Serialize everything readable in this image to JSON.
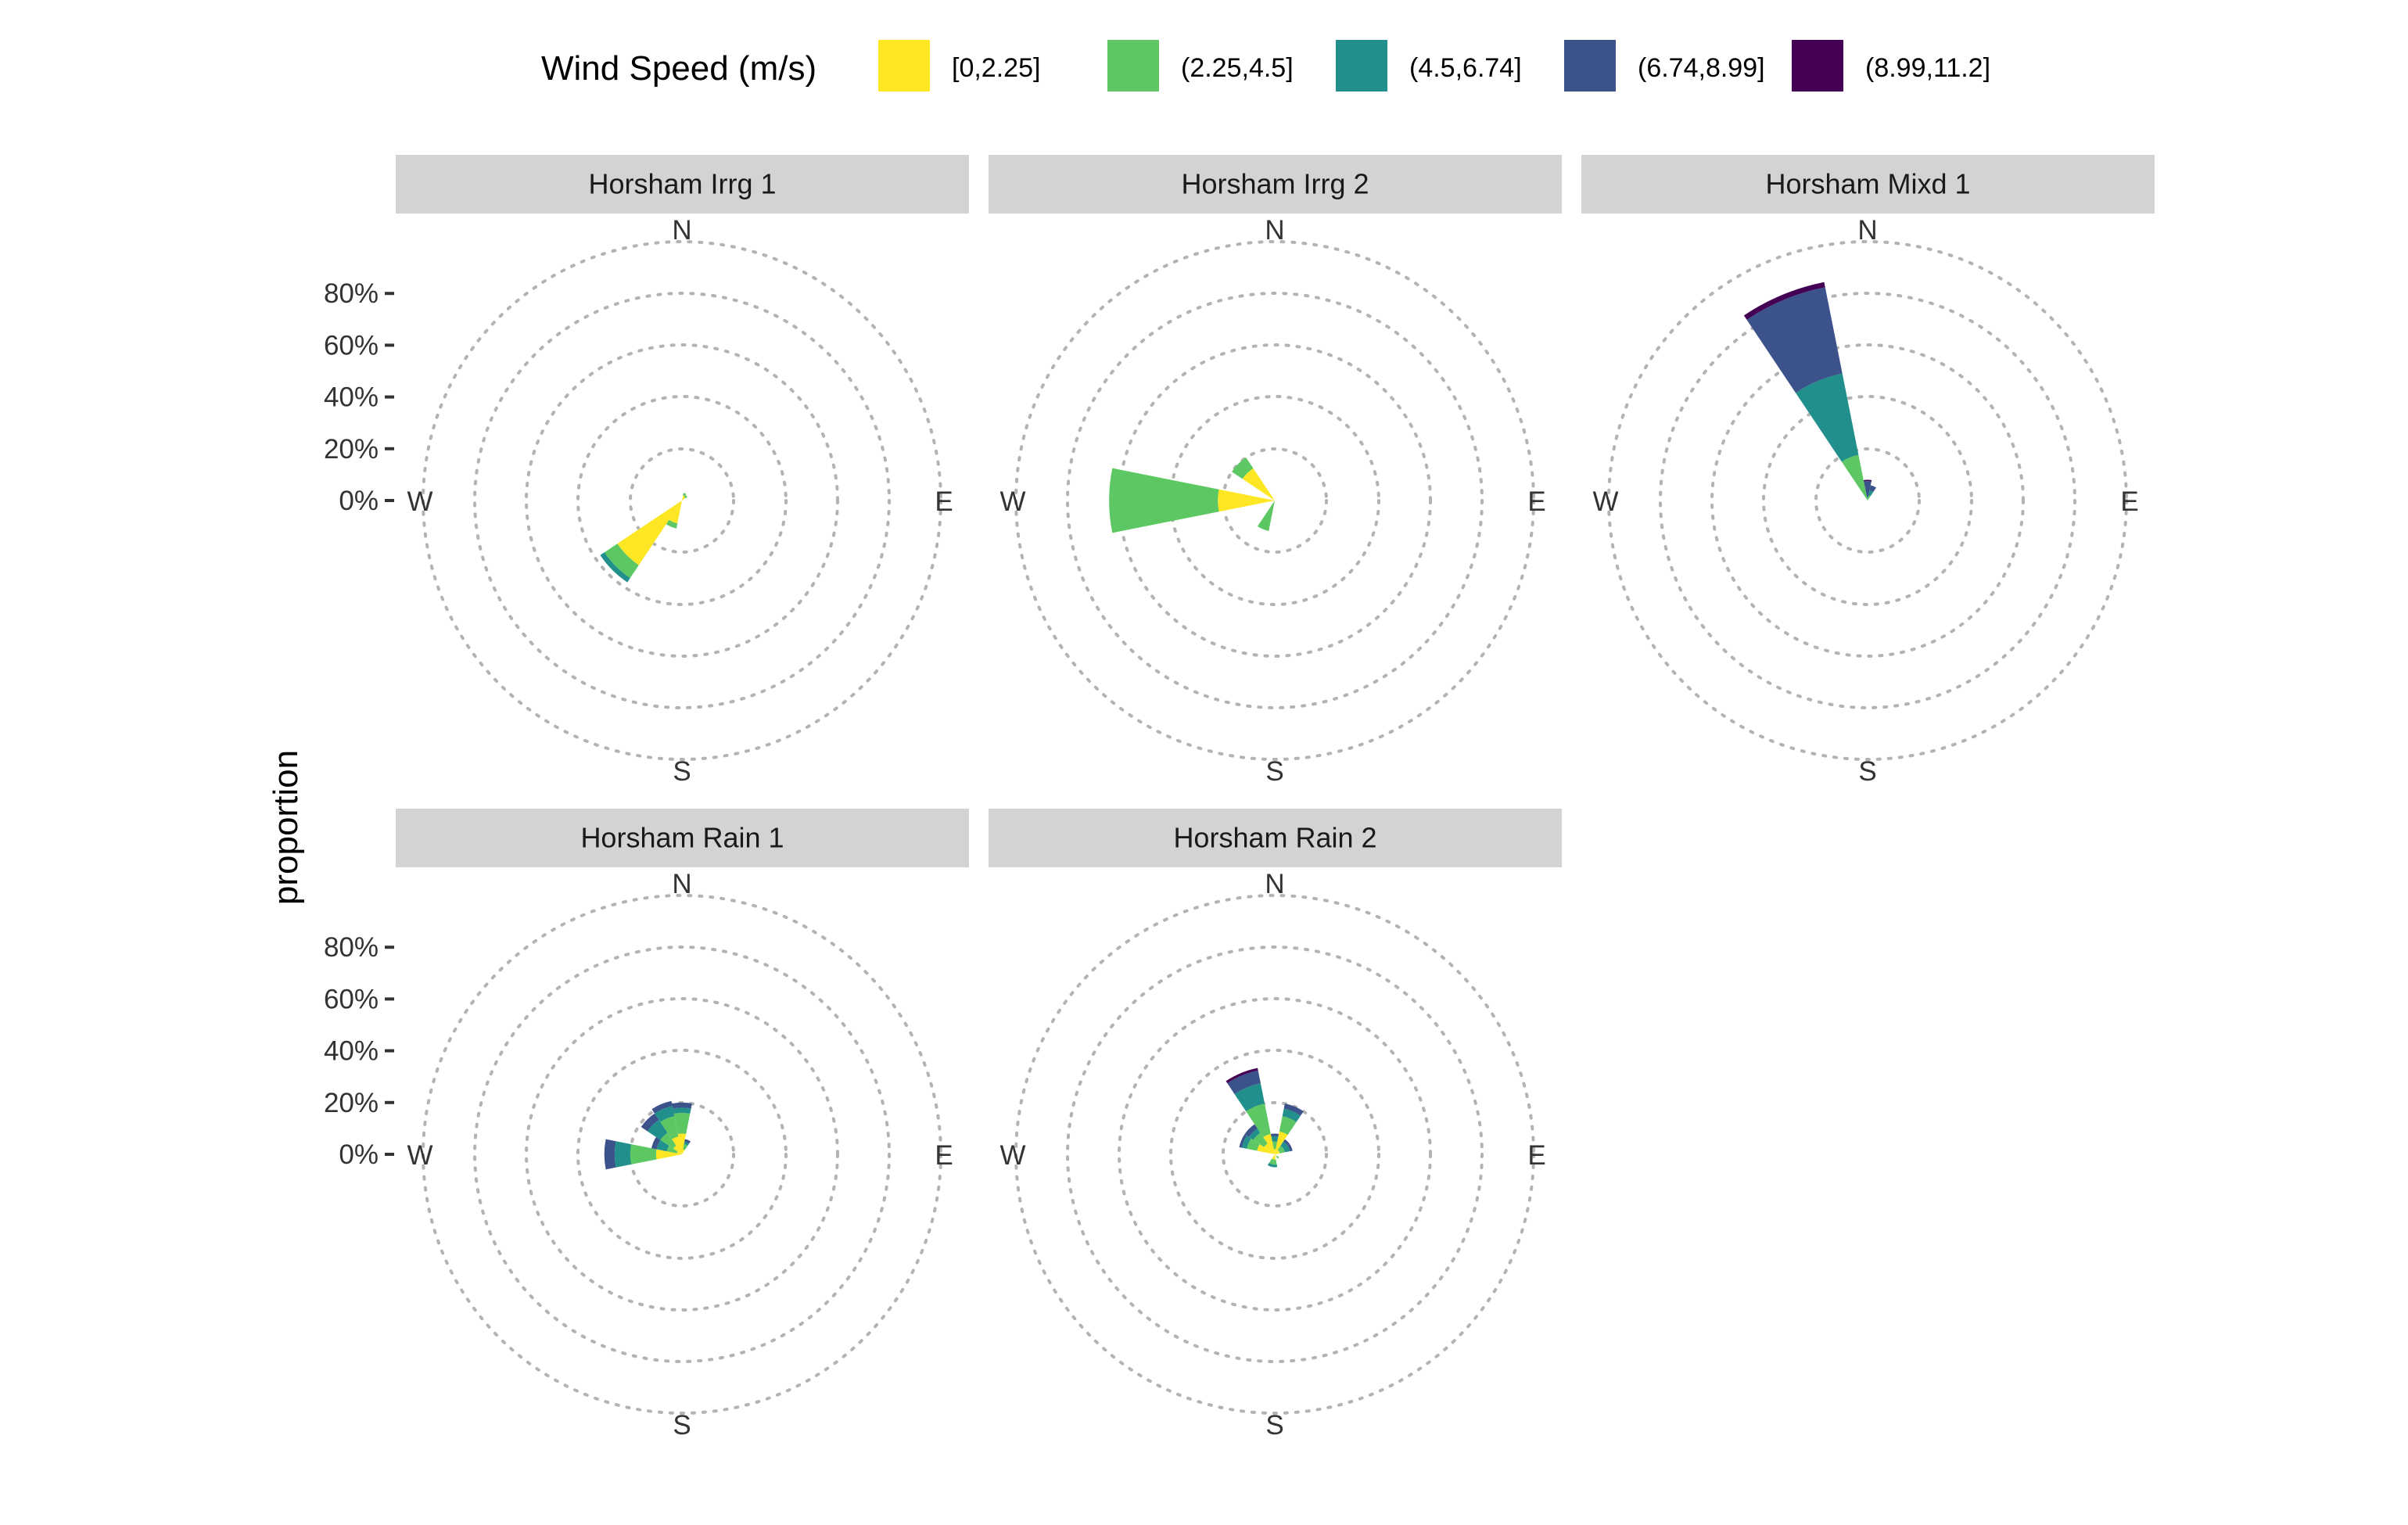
{
  "chart_data": {
    "type": "windrose",
    "ylabel": "proportion",
    "yticks": [
      "0%",
      "20%",
      "40%",
      "60%",
      "80%"
    ],
    "ylim": [
      0,
      1
    ],
    "compass_labels": [
      "N",
      "E",
      "S",
      "W"
    ],
    "legend": {
      "title": "Wind Speed (m/s)",
      "position": "top",
      "bins": [
        {
          "label": "[0,2.25]",
          "color": "#FDE725"
        },
        {
          "label": "(2.25,4.5]",
          "color": "#5DC863"
        },
        {
          "label": "(4.5,6.74]",
          "color": "#21908C"
        },
        {
          "label": "(6.74,8.99]",
          "color": "#3B528B"
        },
        {
          "label": "(8.99,11.2]",
          "color": "#440154"
        }
      ]
    },
    "direction_bin_width_deg": 22.5,
    "panels": [
      {
        "title": "Horsham Irrg 1",
        "sectors": [
          {
            "direction_deg": 22.5,
            "values": [
              0.02,
              0.01,
              0,
              0,
              0
            ]
          },
          {
            "direction_deg": 45,
            "values": [
              0.015,
              0.01,
              0,
              0,
              0
            ]
          },
          {
            "direction_deg": 202.5,
            "values": [
              0.09,
              0.02,
              0,
              0,
              0
            ]
          },
          {
            "direction_deg": 225,
            "values": [
              0.3,
              0.06,
              0.02,
              0,
              0
            ]
          }
        ]
      },
      {
        "title": "Horsham Irrg 2",
        "sectors": [
          {
            "direction_deg": 202.5,
            "values": [
              0,
              0.12,
              0,
              0,
              0
            ]
          },
          {
            "direction_deg": 270,
            "values": [
              0.22,
              0.42,
              0,
              0,
              0
            ]
          },
          {
            "direction_deg": 315,
            "values": [
              0.15,
              0.05,
              0,
              0,
              0
            ]
          }
        ]
      },
      {
        "title": "Horsham Mixd 1",
        "sectors": [
          {
            "direction_deg": 0,
            "values": [
              0,
              0.01,
              0.005,
              0.06,
              0.005
            ]
          },
          {
            "direction_deg": 22.5,
            "values": [
              0,
              0.02,
              0.02,
              0.02,
              0
            ]
          },
          {
            "direction_deg": 337.5,
            "values": [
              0,
              0.18,
              0.32,
              0.34,
              0.02
            ]
          }
        ]
      },
      {
        "title": "Horsham Rain 1",
        "sectors": [
          {
            "direction_deg": 0,
            "values": [
              0.08,
              0.08,
              0.02,
              0.02,
              0
            ]
          },
          {
            "direction_deg": 22.5,
            "values": [
              0.02,
              0.02,
              0.01,
              0.01,
              0
            ]
          },
          {
            "direction_deg": 270,
            "values": [
              0.1,
              0.1,
              0.06,
              0.04,
              0
            ]
          },
          {
            "direction_deg": 292.5,
            "values": [
              0.02,
              0.04,
              0.04,
              0.02,
              0
            ]
          },
          {
            "direction_deg": 315,
            "values": [
              0.04,
              0.06,
              0.06,
              0.03,
              0
            ]
          },
          {
            "direction_deg": 337.5,
            "values": [
              0.07,
              0.08,
              0.04,
              0.02,
              0
            ]
          }
        ]
      },
      {
        "title": "Horsham Rain 2",
        "sectors": [
          {
            "direction_deg": 0,
            "values": [
              0.02,
              0.03,
              0.02,
              0.01,
              0
            ]
          },
          {
            "direction_deg": 22.5,
            "values": [
              0.09,
              0.06,
              0.03,
              0.02,
              0
            ]
          },
          {
            "direction_deg": 45,
            "values": [
              0.02,
              0.02,
              0.02,
              0.01,
              0
            ]
          },
          {
            "direction_deg": 67.5,
            "values": [
              0.02,
              0.02,
              0.02,
              0.01,
              0
            ]
          },
          {
            "direction_deg": 135,
            "values": [
              0.01,
              0.01,
              0,
              0,
              0
            ]
          },
          {
            "direction_deg": 180,
            "values": [
              0.02,
              0.02,
              0.01,
              0,
              0
            ]
          },
          {
            "direction_deg": 202.5,
            "values": [
              0.02,
              0.02,
              0.01,
              0,
              0
            ]
          },
          {
            "direction_deg": 292.5,
            "values": [
              0.07,
              0.04,
              0.02,
              0.01,
              0
            ]
          },
          {
            "direction_deg": 315,
            "values": [
              0.05,
              0.05,
              0.02,
              0.02,
              0
            ]
          },
          {
            "direction_deg": 337.5,
            "values": [
              0.08,
              0.12,
              0.08,
              0.05,
              0.01
            ]
          }
        ]
      }
    ]
  }
}
